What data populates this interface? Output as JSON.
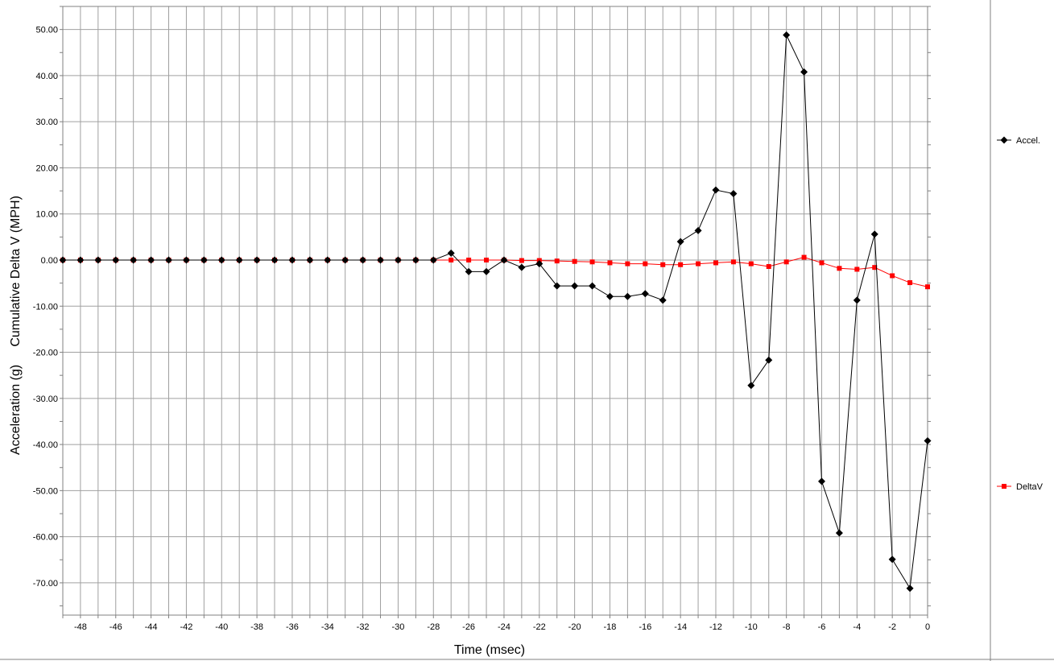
{
  "chart_data": {
    "type": "line",
    "xlabel": "Time (msec)",
    "ylabel": "Acceleration (g)     Cumulative Delta V (MPH)",
    "xlim": [
      -49,
      0
    ],
    "ylim": [
      -77,
      55
    ],
    "x_ticks": [
      -48,
      -46,
      -44,
      -42,
      -40,
      -38,
      -36,
      -34,
      -32,
      -30,
      -28,
      -26,
      -24,
      -22,
      -20,
      -18,
      -16,
      -14,
      -12,
      -10,
      -8,
      -6,
      -4,
      -2,
      0
    ],
    "y_ticks": [
      50,
      40,
      30,
      20,
      10,
      0,
      -10,
      -20,
      -30,
      -40,
      -50,
      -60,
      -70
    ],
    "y_tick_labels": [
      "50.00",
      "40.00",
      "30.00",
      "20.00",
      "10.00",
      "0.00",
      "-10.00",
      "-20.00",
      "-30.00",
      "-40.00",
      "-50.00",
      "-60.00",
      "-70.00"
    ],
    "grid": true,
    "legend_position": "right",
    "x": [
      -49,
      -48,
      -47,
      -46,
      -45,
      -44,
      -43,
      -42,
      -41,
      -40,
      -39,
      -38,
      -37,
      -36,
      -35,
      -34,
      -33,
      -32,
      -31,
      -30,
      -29,
      -28,
      -27,
      -26,
      -25,
      -24,
      -23,
      -22,
      -21,
      -20,
      -19,
      -18,
      -17,
      -16,
      -15,
      -14,
      -13,
      -12,
      -11,
      -10,
      -9,
      -8,
      -7,
      -6,
      -5,
      -4,
      -3,
      -2,
      -1,
      0
    ],
    "series": [
      {
        "name": "Accel.",
        "color": "#000000",
        "marker": "diamond",
        "values": [
          0,
          0,
          0,
          0,
          0,
          0,
          0,
          0,
          0,
          0,
          0,
          0,
          0,
          0,
          0,
          0,
          0,
          0,
          0,
          0,
          0,
          0,
          1.5,
          -2.5,
          -2.5,
          0,
          -1.6,
          -0.8,
          -5.6,
          -5.6,
          -5.6,
          -7.9,
          -7.9,
          -7.3,
          -8.7,
          4.0,
          6.4,
          15.2,
          14.4,
          -27.2,
          -21.7,
          48.8,
          40.8,
          -48.0,
          -59.2,
          -8.7,
          5.6,
          -64.9,
          -71.2,
          -39.2
        ]
      },
      {
        "name": "DeltaV",
        "color": "#ff0000",
        "marker": "square",
        "values": [
          0,
          0,
          0,
          0,
          0,
          0,
          0,
          0,
          0,
          0,
          0,
          0,
          0,
          0,
          0,
          0,
          0,
          0,
          0,
          0,
          0,
          0,
          0,
          0,
          0,
          0,
          -0.1,
          -0.1,
          -0.2,
          -0.3,
          -0.4,
          -0.6,
          -0.8,
          -0.8,
          -1.0,
          -1.0,
          -0.8,
          -0.6,
          -0.4,
          -0.8,
          -1.4,
          -0.4,
          0.6,
          -0.6,
          -1.8,
          -2.0,
          -1.6,
          -3.4,
          -4.9,
          -5.8
        ]
      }
    ]
  }
}
